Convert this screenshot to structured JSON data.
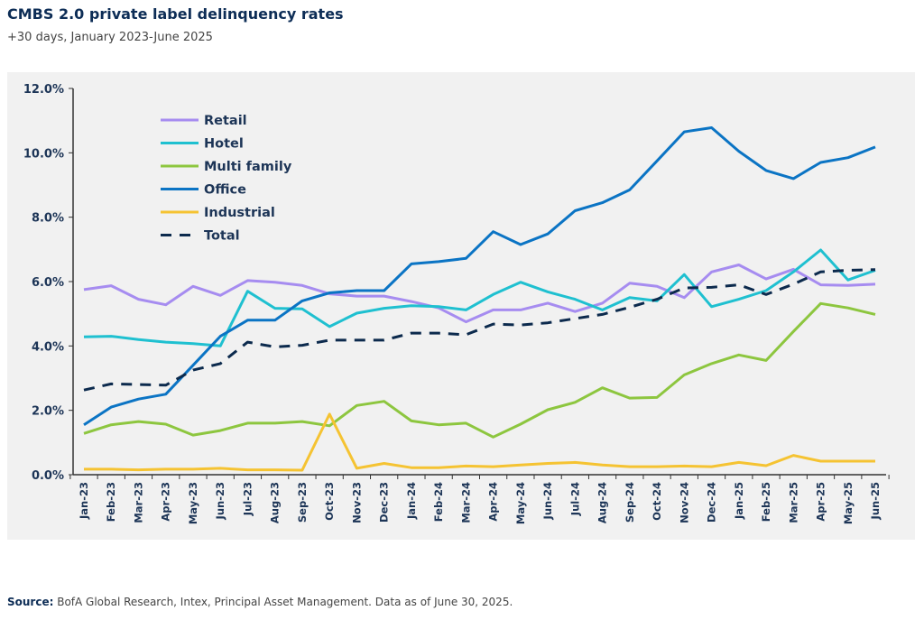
{
  "header": {
    "title": "CMBS 2.0 private label delinquency rates",
    "subtitle": "+30 days, January 2023-June 2025"
  },
  "footer": {
    "source_label": "Source:",
    "source_text": " BofA Global Research, Intex, Principal Asset Management. Data as of June 30, 2025."
  },
  "chart_data": {
    "type": "line",
    "title": "CMBS 2.0 private label delinquency rates",
    "subtitle": "+30 days, January 2023-June 2025",
    "ylim": [
      0,
      12
    ],
    "yticks": [
      "0.0%",
      "2.0%",
      "4.0%",
      "6.0%",
      "8.0%",
      "10.0%",
      "12.0%"
    ],
    "grid": false,
    "legend": "top-left",
    "categories": [
      "Jan-23",
      "Feb-23",
      "Mar-23",
      "Apr-23",
      "May-23",
      "Jun-23",
      "Jul-23",
      "Aug-23",
      "Sep-23",
      "Oct-23",
      "Nov-23",
      "Dec-23",
      "Jan-24",
      "Feb-24",
      "Mar-24",
      "Apr-24",
      "May-24",
      "Jun-24",
      "Jul-24",
      "Aug-24",
      "Sep-24",
      "Oct-24",
      "Nov-24",
      "Dec-24",
      "Jan-25",
      "Feb-25",
      "Mar-25",
      "Apr-25",
      "May-25",
      "Jun-25"
    ],
    "series": [
      {
        "name": "Retail",
        "color": "#a68cf0",
        "dashed": false,
        "values": [
          5.75,
          5.87,
          5.45,
          5.28,
          5.85,
          5.57,
          6.03,
          5.98,
          5.88,
          5.62,
          5.55,
          5.55,
          5.38,
          5.18,
          4.75,
          5.12,
          5.12,
          5.33,
          5.07,
          5.33,
          5.95,
          5.85,
          5.5,
          6.3,
          6.52,
          6.08,
          6.38,
          5.9,
          5.88,
          5.92
        ]
      },
      {
        "name": "Hotel",
        "color": "#1fc0d0",
        "dashed": false,
        "values": [
          4.28,
          4.3,
          4.2,
          4.12,
          4.07,
          4.0,
          5.7,
          5.17,
          5.15,
          4.6,
          5.02,
          5.17,
          5.25,
          5.22,
          5.12,
          5.6,
          5.98,
          5.68,
          5.45,
          5.12,
          5.5,
          5.4,
          6.22,
          5.22,
          5.45,
          5.72,
          6.3,
          6.98,
          6.05,
          6.35
        ]
      },
      {
        "name": "Multi family",
        "color": "#8dc63f",
        "dashed": false,
        "values": [
          1.28,
          1.55,
          1.65,
          1.57,
          1.23,
          1.37,
          1.6,
          1.6,
          1.65,
          1.52,
          2.15,
          2.28,
          1.67,
          1.55,
          1.6,
          1.17,
          1.57,
          2.02,
          2.25,
          2.7,
          2.38,
          2.4,
          3.1,
          3.45,
          3.72,
          3.55,
          4.45,
          5.32,
          5.18,
          4.98
        ]
      },
      {
        "name": "Office",
        "color": "#0b74c4",
        "dashed": false,
        "values": [
          1.55,
          2.1,
          2.35,
          2.5,
          3.4,
          4.3,
          4.8,
          4.8,
          5.4,
          5.65,
          5.72,
          5.72,
          6.55,
          6.62,
          6.72,
          7.55,
          7.15,
          7.48,
          8.2,
          8.45,
          8.85,
          9.75,
          10.65,
          10.78,
          10.05,
          9.45,
          9.2,
          9.7,
          9.85,
          10.18
        ]
      },
      {
        "name": "Industrial",
        "color": "#f5c332",
        "dashed": false,
        "values": [
          0.17,
          0.17,
          0.15,
          0.17,
          0.17,
          0.2,
          0.15,
          0.15,
          0.14,
          1.88,
          0.2,
          0.35,
          0.22,
          0.22,
          0.27,
          0.25,
          0.3,
          0.35,
          0.38,
          0.3,
          0.25,
          0.25,
          0.27,
          0.25,
          0.38,
          0.28,
          0.6,
          0.42,
          0.42,
          0.42
        ]
      },
      {
        "name": "Total",
        "color": "#0c2a4d",
        "dashed": true,
        "values": [
          2.63,
          2.82,
          2.8,
          2.78,
          3.25,
          3.45,
          4.12,
          3.97,
          4.02,
          4.18,
          4.18,
          4.18,
          4.4,
          4.4,
          4.35,
          4.68,
          4.65,
          4.72,
          4.85,
          4.98,
          5.2,
          5.45,
          5.8,
          5.82,
          5.9,
          5.6,
          5.92,
          6.3,
          6.35,
          6.37
        ]
      }
    ]
  }
}
